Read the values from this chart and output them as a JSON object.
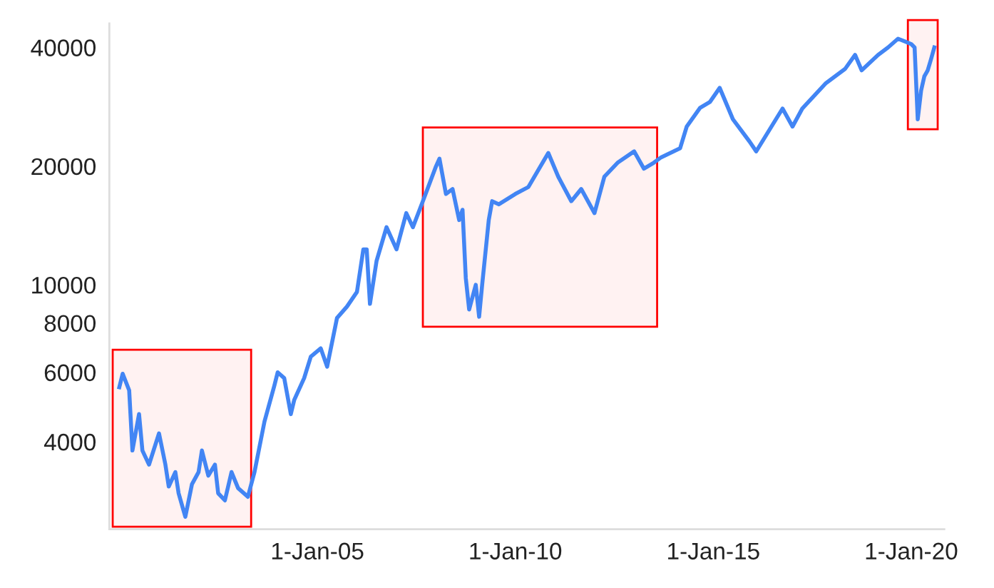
{
  "chart_data": {
    "type": "line",
    "log": "y",
    "grid": false,
    "legend": false,
    "marker": "none",
    "line_style": "solid",
    "xlim": [
      "1999-10",
      "2020-11"
    ],
    "ylim": [
      2400,
      46000
    ],
    "xticks": [
      {
        "value": "2005-01-01",
        "label": "1-Jan-05"
      },
      {
        "value": "2010-01-01",
        "label": "1-Jan-10"
      },
      {
        "value": "2015-01-01",
        "label": "1-Jan-15"
      },
      {
        "value": "2020-01-01",
        "label": "1-Jan-20"
      }
    ],
    "yticks": [
      4000,
      6000,
      8000,
      10000,
      20000,
      40000
    ],
    "bands": [
      {
        "axis": "x",
        "from": "1999-11",
        "to": "2003-05",
        "color": "#ff0000"
      },
      {
        "axis": "x",
        "from": "2007-09",
        "to": "2013-08",
        "color": "#ff0000"
      },
      {
        "axis": "x",
        "from": "2019-12",
        "to": "2020-09",
        "color": "#ff0000"
      }
    ],
    "series": [
      {
        "color": "#4285f4",
        "x": [
          "2000-01",
          "2000-02",
          "2000-04",
          "2000-05",
          "2000-07",
          "2000-08",
          "2000-10",
          "2001-01",
          "2001-03",
          "2001-04",
          "2001-06",
          "2001-07",
          "2001-09",
          "2001-11",
          "2002-01",
          "2002-02",
          "2002-04",
          "2002-06",
          "2002-07",
          "2002-09",
          "2002-11",
          "2003-01",
          "2003-04",
          "2003-06",
          "2003-09",
          "2003-12",
          "2004-01",
          "2004-03",
          "2004-05",
          "2004-06",
          "2004-09",
          "2004-11",
          "2005-02",
          "2005-04",
          "2005-07",
          "2005-10",
          "2006-01",
          "2006-03",
          "2006-04",
          "2006-05",
          "2006-07",
          "2006-10",
          "2007-01",
          "2007-04",
          "2007-06",
          "2007-09",
          "2008-01",
          "2008-02",
          "2008-04",
          "2008-06",
          "2008-08",
          "2008-09",
          "2008-10",
          "2008-11",
          "2009-01",
          "2009-02",
          "2009-03",
          "2009-05",
          "2009-06",
          "2009-08",
          "2010-01",
          "2010-05",
          "2010-11",
          "2011-02",
          "2011-06",
          "2011-09",
          "2012-01",
          "2012-04",
          "2012-08",
          "2013-01",
          "2013-04",
          "2013-07",
          "2013-09",
          "2014-03",
          "2014-05",
          "2014-09",
          "2014-12",
          "2015-03",
          "2015-07",
          "2015-12",
          "2016-02",
          "2016-08",
          "2016-10",
          "2017-01",
          "2017-04",
          "2017-11",
          "2018-05",
          "2018-08",
          "2018-10",
          "2019-03",
          "2019-06",
          "2019-09",
          "2020-01",
          "2020-02",
          "2020-03",
          "2020-04",
          "2020-05",
          "2020-06",
          "2020-07",
          "2020-08"
        ],
        "values": [
          5500,
          5950,
          5400,
          3800,
          4700,
          3800,
          3500,
          4200,
          3500,
          3080,
          3350,
          2960,
          2580,
          3120,
          3350,
          3800,
          3280,
          3500,
          2960,
          2840,
          3350,
          3050,
          2900,
          3350,
          4500,
          5550,
          6000,
          5800,
          4700,
          5100,
          5800,
          6570,
          6900,
          6200,
          8240,
          8810,
          9590,
          12300,
          12300,
          8950,
          11500,
          14000,
          12300,
          15200,
          14000,
          16300,
          20000,
          20900,
          17000,
          17500,
          14600,
          15500,
          10400,
          8660,
          10000,
          8300,
          10000,
          14600,
          16300,
          16000,
          17000,
          17700,
          21600,
          18800,
          16300,
          17500,
          15200,
          18800,
          20400,
          21800,
          19700,
          20400,
          21000,
          22200,
          25200,
          28100,
          29100,
          31600,
          26300,
          23100,
          21800,
          26300,
          28000,
          25200,
          28000,
          32400,
          35300,
          38300,
          35000,
          38300,
          40000,
          42100,
          40800,
          40000,
          26300,
          31100,
          33800,
          35000,
          37300,
          40000
        ]
      }
    ]
  }
}
